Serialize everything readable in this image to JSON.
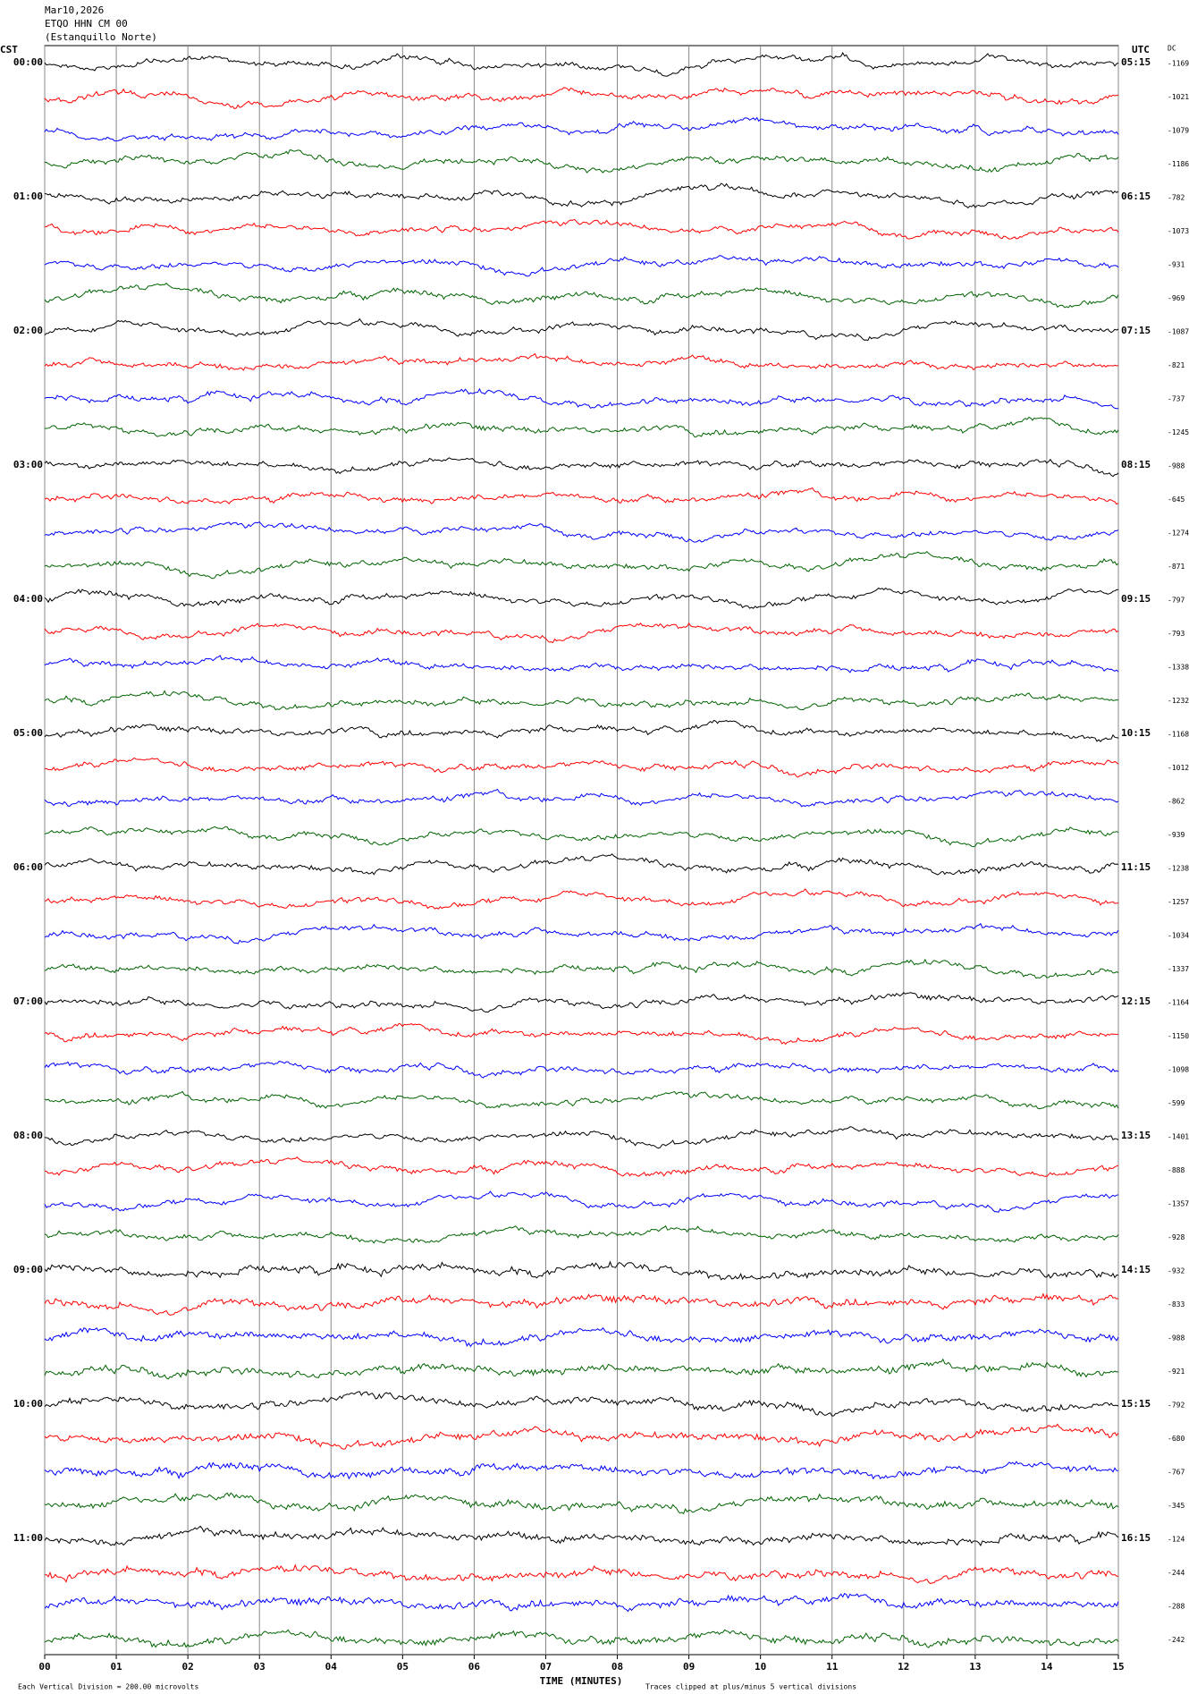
{
  "chart_data": {
    "type": "helicorder",
    "title_lines": [
      "Mar10,2026",
      "ETQO HHN CM 00",
      "(Estanquillo Norte)"
    ],
    "left_zone": "CST",
    "right_zone": "UTC",
    "dc_header": "DC",
    "cst_labels": [
      "00:00",
      "01:00",
      "02:00",
      "03:00",
      "04:00",
      "05:00",
      "06:00",
      "07:00",
      "08:00",
      "09:00",
      "10:00",
      "11:00"
    ],
    "utc_labels": [
      "05:15",
      "06:15",
      "07:15",
      "08:15",
      "09:15",
      "10:15",
      "11:15",
      "12:15",
      "13:15",
      "14:15",
      "15:15",
      "16:15"
    ],
    "dc_values": [
      -1169,
      -1021,
      -1079,
      -1186,
      -782,
      -1073,
      -931,
      -969,
      -1087,
      -821,
      -737,
      -1245,
      -988,
      -645,
      -1274,
      -871,
      -797,
      -793,
      -1338,
      -1232,
      -1168,
      -1012,
      -862,
      -939,
      -1238,
      -1257,
      -1034,
      -1337,
      -1164,
      -1150,
      -1098,
      -599,
      -1401,
      -888,
      -1357,
      -928,
      -932,
      -833,
      -988,
      -921,
      -792,
      -680,
      -767,
      -345,
      -124,
      -244,
      -288,
      -242
    ],
    "trace_colors": [
      "#000000",
      "#ff0000",
      "#0000ff",
      "#006400"
    ],
    "xlim": [
      0,
      15
    ],
    "xticks": [
      {
        "value": 0,
        "label": "00"
      },
      {
        "value": 1,
        "label": "01"
      },
      {
        "value": 2,
        "label": "02"
      },
      {
        "value": 3,
        "label": "03"
      },
      {
        "value": 4,
        "label": "04"
      },
      {
        "value": 5,
        "label": "05"
      },
      {
        "value": 6,
        "label": "06"
      },
      {
        "value": 7,
        "label": "07"
      },
      {
        "value": 8,
        "label": "08"
      },
      {
        "value": 9,
        "label": "09"
      },
      {
        "value": 10,
        "label": "10"
      },
      {
        "value": 11,
        "label": "11"
      },
      {
        "value": 12,
        "label": "12"
      },
      {
        "value": 13,
        "label": "13"
      },
      {
        "value": 14,
        "label": "14"
      },
      {
        "value": 15,
        "label": "15"
      }
    ],
    "xlabel": "TIME (MINUTES)",
    "footer_left": "Each Vertical Division = 200.00 microvolts",
    "footer_right": "Traces clipped at plus/minus 5 vertical divisions",
    "grid": true
  }
}
